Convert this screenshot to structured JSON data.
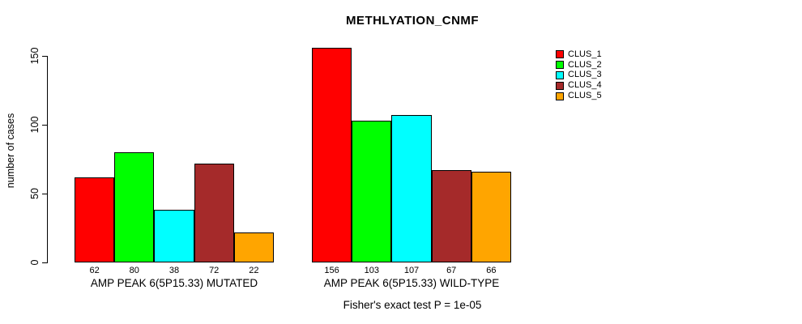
{
  "title": "METHLYATION_CNMF",
  "footer": "Fisher's exact test P = 1e-05",
  "y_axis": {
    "label": "number of cases",
    "ticks": [
      0,
      50,
      100,
      150
    ]
  },
  "legend": [
    {
      "label": "CLUS_1",
      "color": "#FF0000"
    },
    {
      "label": "CLUS_2",
      "color": "#00FF00"
    },
    {
      "label": "CLUS_3",
      "color": "#00FFFF"
    },
    {
      "label": "CLUS_4",
      "color": "#A52A2A"
    },
    {
      "label": "CLUS_5",
      "color": "#FFA500"
    }
  ],
  "chart_data": {
    "type": "bar",
    "title": "METHLYATION_CNMF",
    "xlabel": "",
    "ylabel": "number of cases",
    "ylim": [
      0,
      150
    ],
    "yticks": [
      0,
      50,
      100,
      150
    ],
    "grid": false,
    "legend_position": "right",
    "categories": [
      "AMP PEAK  6(5P15.33) MUTATED",
      "AMP PEAK  6(5P15.33) WILD-TYPE"
    ],
    "series": [
      {
        "name": "CLUS_1",
        "color": "#FF0000",
        "values": [
          62,
          156
        ]
      },
      {
        "name": "CLUS_2",
        "color": "#00FF00",
        "values": [
          80,
          103
        ]
      },
      {
        "name": "CLUS_3",
        "color": "#00FFFF",
        "values": [
          38,
          107
        ]
      },
      {
        "name": "CLUS_4",
        "color": "#A52A2A",
        "values": [
          72,
          67
        ]
      },
      {
        "name": "CLUS_5",
        "color": "#FFA500",
        "values": [
          22,
          66
        ]
      }
    ],
    "bar_value_labels": [
      [
        62,
        80,
        38,
        72,
        22
      ],
      [
        156,
        103,
        107,
        67,
        66
      ]
    ],
    "annotation": "Fisher's exact test P = 1e-05"
  }
}
